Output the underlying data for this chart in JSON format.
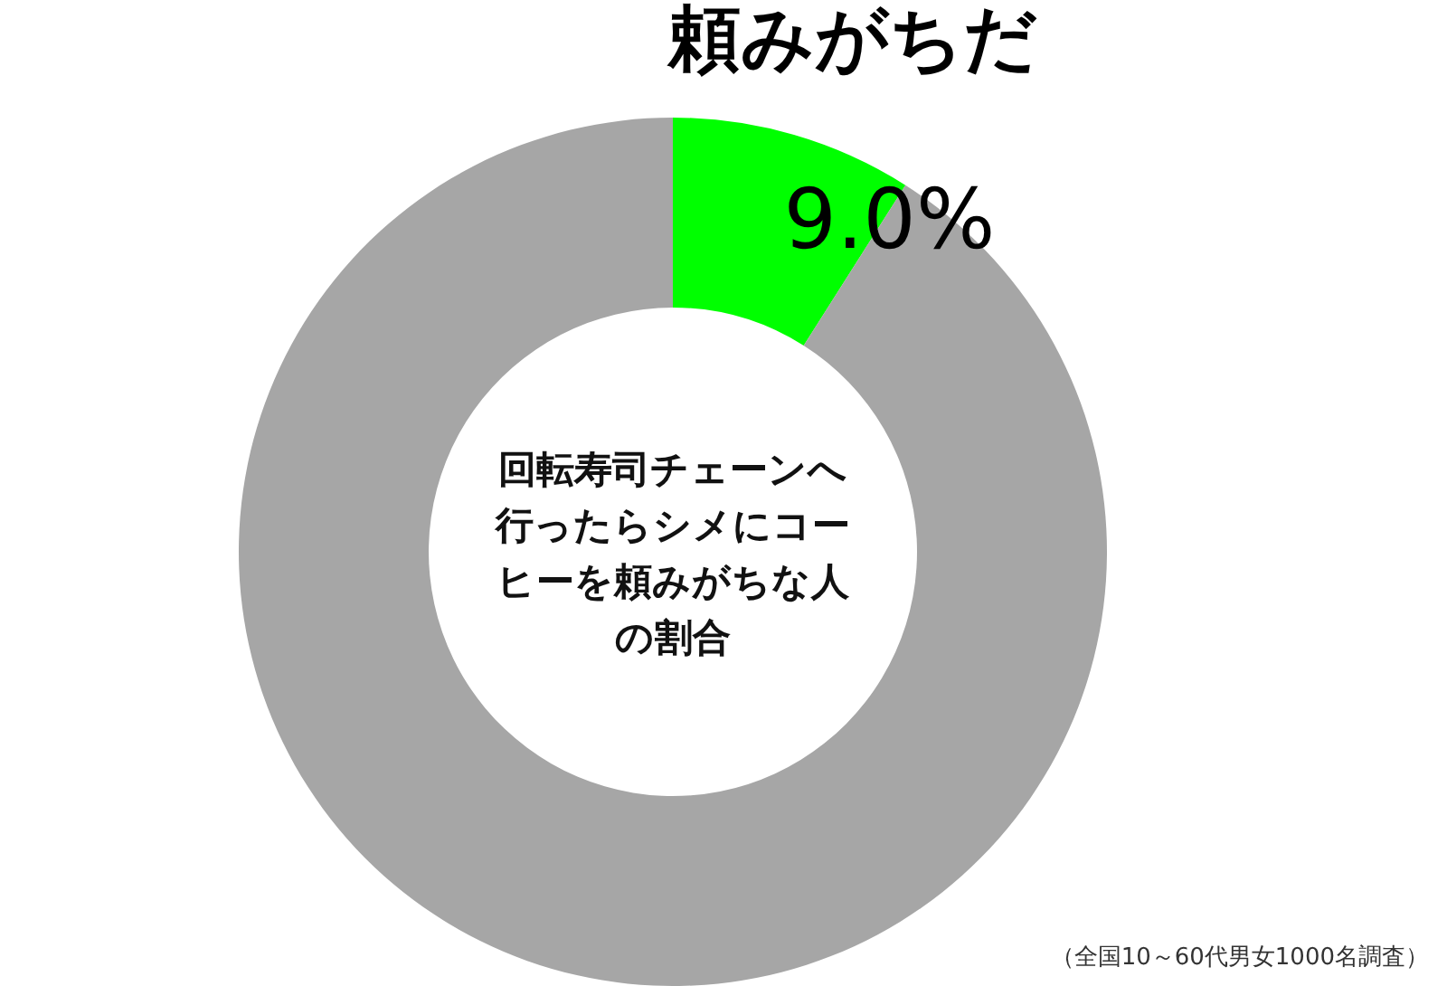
{
  "chart_data": {
    "type": "donut",
    "title": "回転寿司チェーンへ行ったらシメにコーヒーを頼みがちな人の割合",
    "categories": [
      "頼みがちだ",
      null
    ],
    "values": [
      9.0,
      91.0
    ],
    "colors": [
      "#00ff00",
      "#a6a6a6"
    ],
    "value_labels": [
      "9.0%",
      null
    ],
    "annotations": [
      "（全国10～60代男女1000名調査）"
    ]
  }
}
